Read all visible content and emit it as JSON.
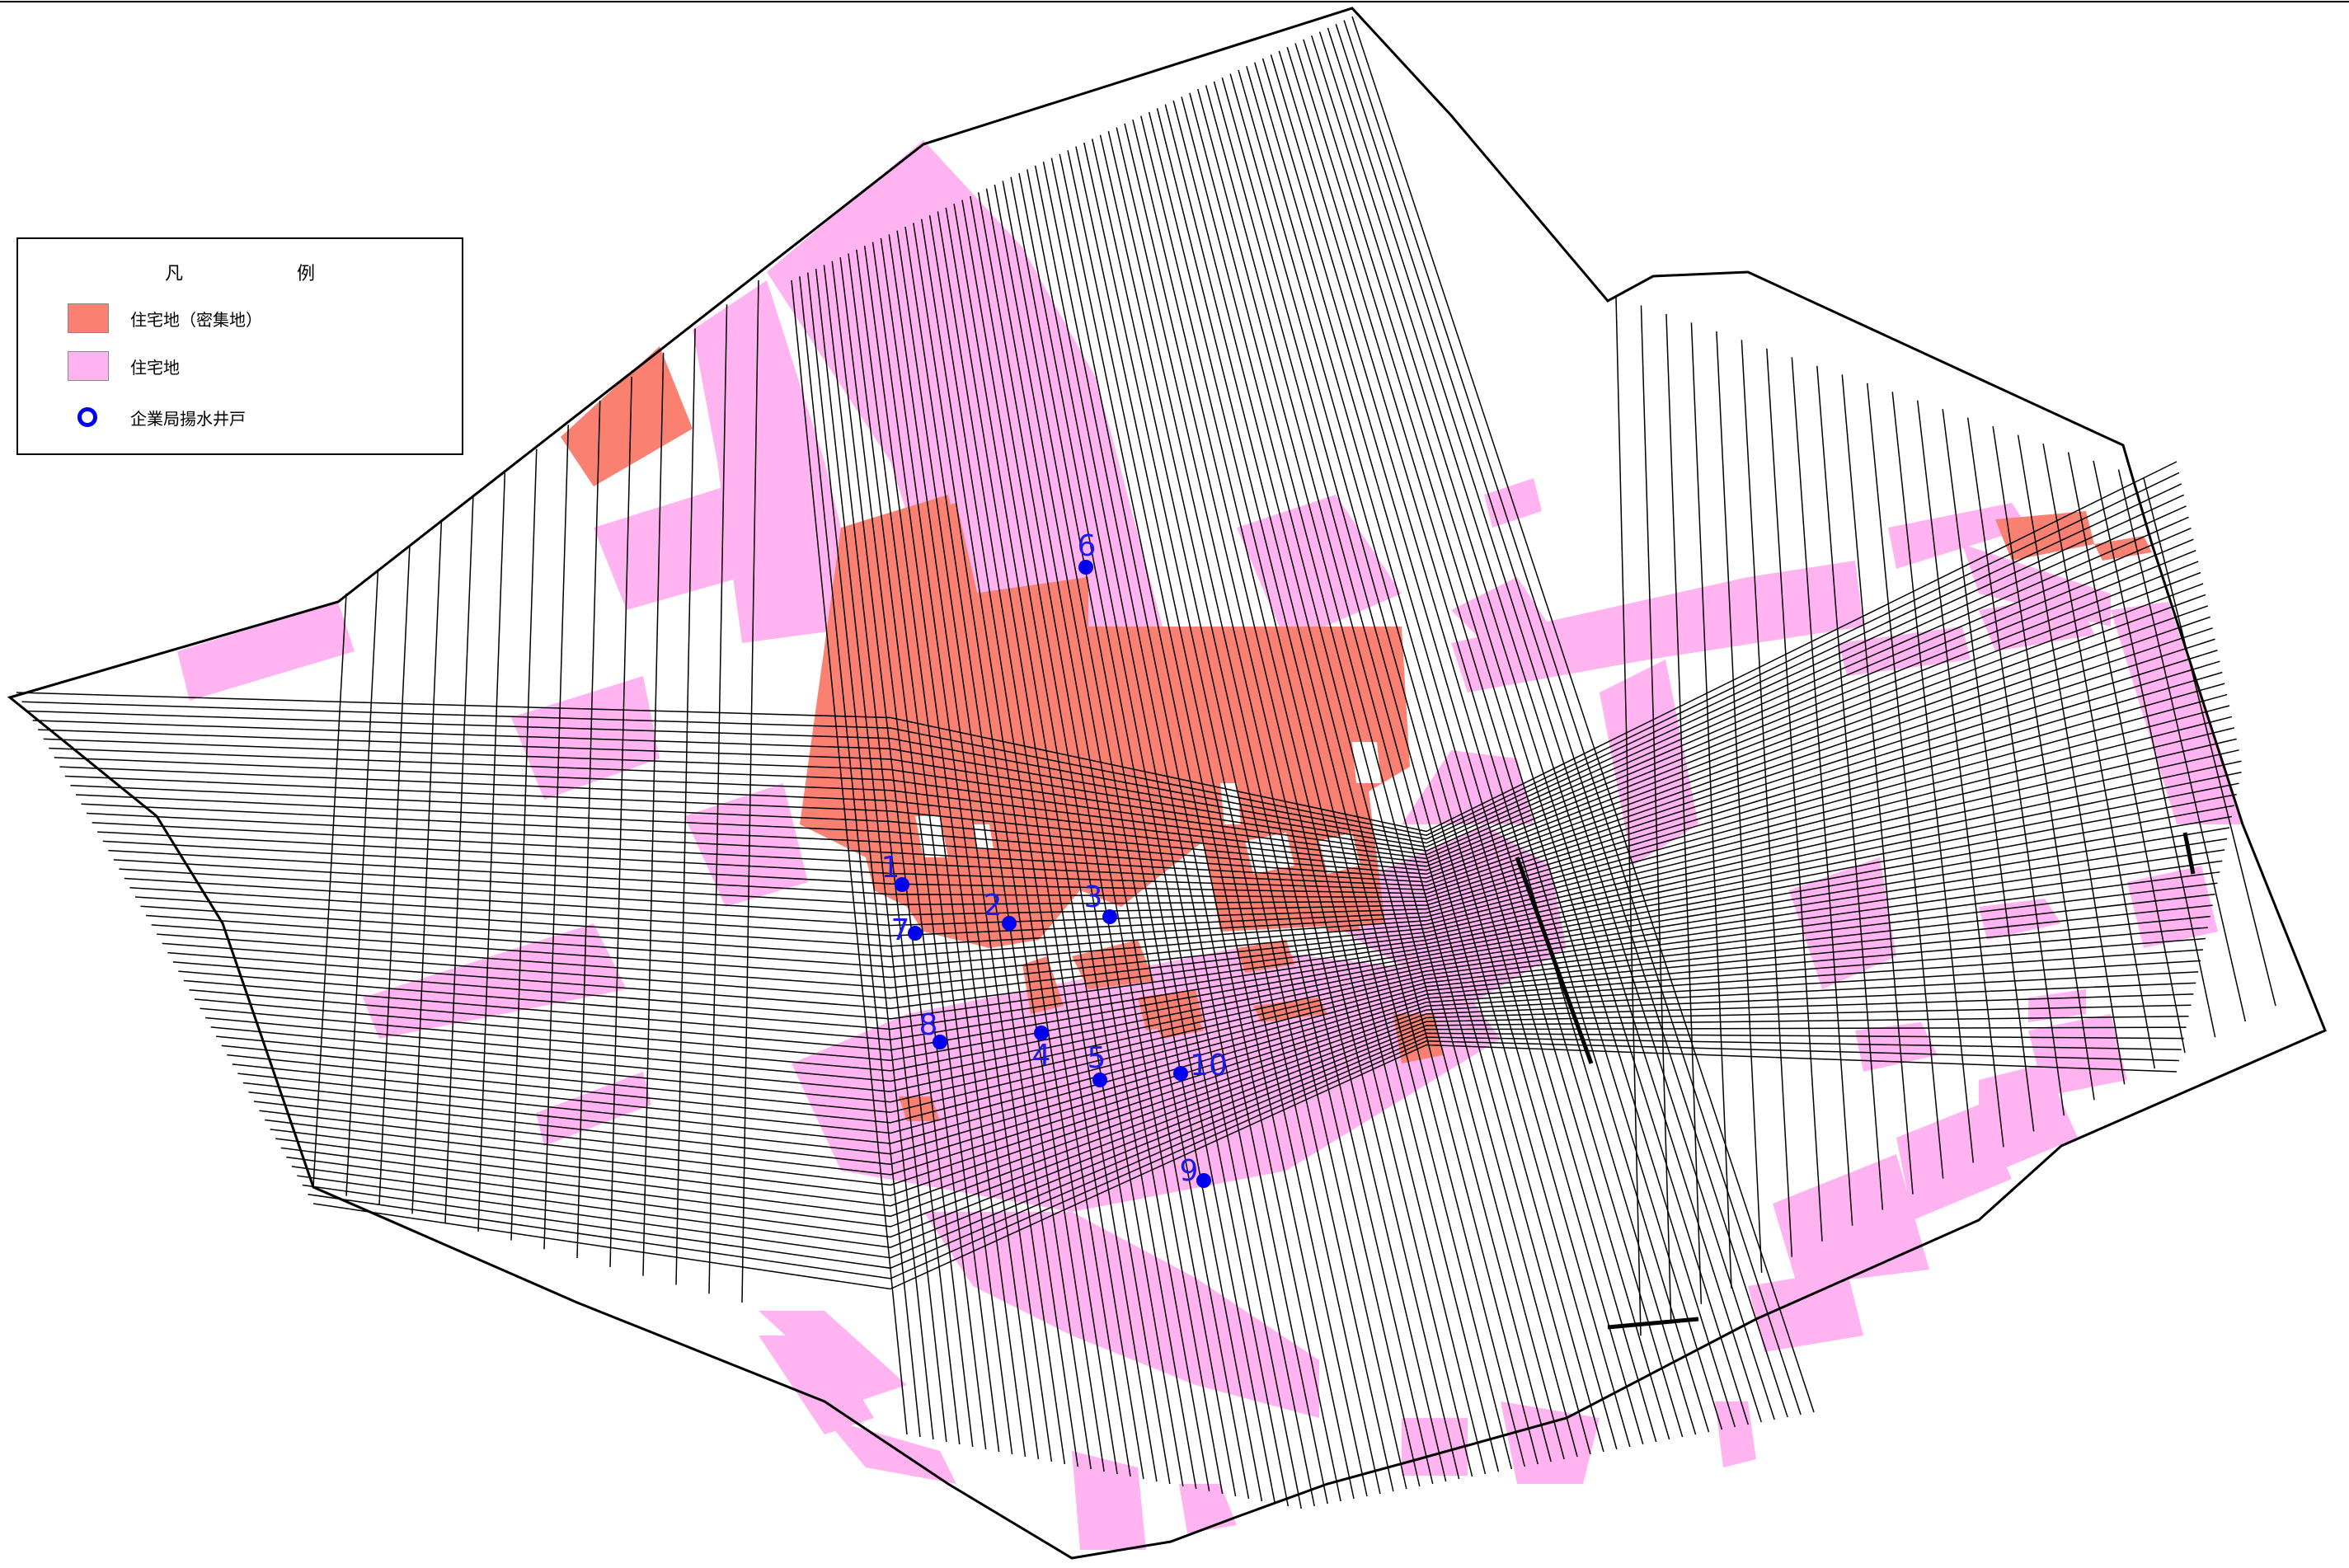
{
  "legend": {
    "title": "凡　例",
    "items": [
      {
        "label": "住宅地（密集地）",
        "color": "#fa8072"
      },
      {
        "label": "住宅地",
        "color": "#ffb3f0"
      },
      {
        "label": "企業局揚水井戸",
        "color": "#0000ee",
        "symbol": "ring"
      }
    ]
  },
  "colors": {
    "dense_residential": "#fa8072",
    "residential": "#ffb3f0",
    "grid_line": "#000000",
    "well": "#0000ee"
  },
  "wells": [
    {
      "id": "1",
      "label": "1"
    },
    {
      "id": "2",
      "label": "2"
    },
    {
      "id": "3",
      "label": "3"
    },
    {
      "id": "4",
      "label": "4"
    },
    {
      "id": "5",
      "label": "5"
    },
    {
      "id": "6",
      "label": "6"
    },
    {
      "id": "7",
      "label": "7"
    },
    {
      "id": "8",
      "label": "8"
    },
    {
      "id": "9",
      "label": "9"
    },
    {
      "id": "10",
      "label": "10"
    }
  ]
}
